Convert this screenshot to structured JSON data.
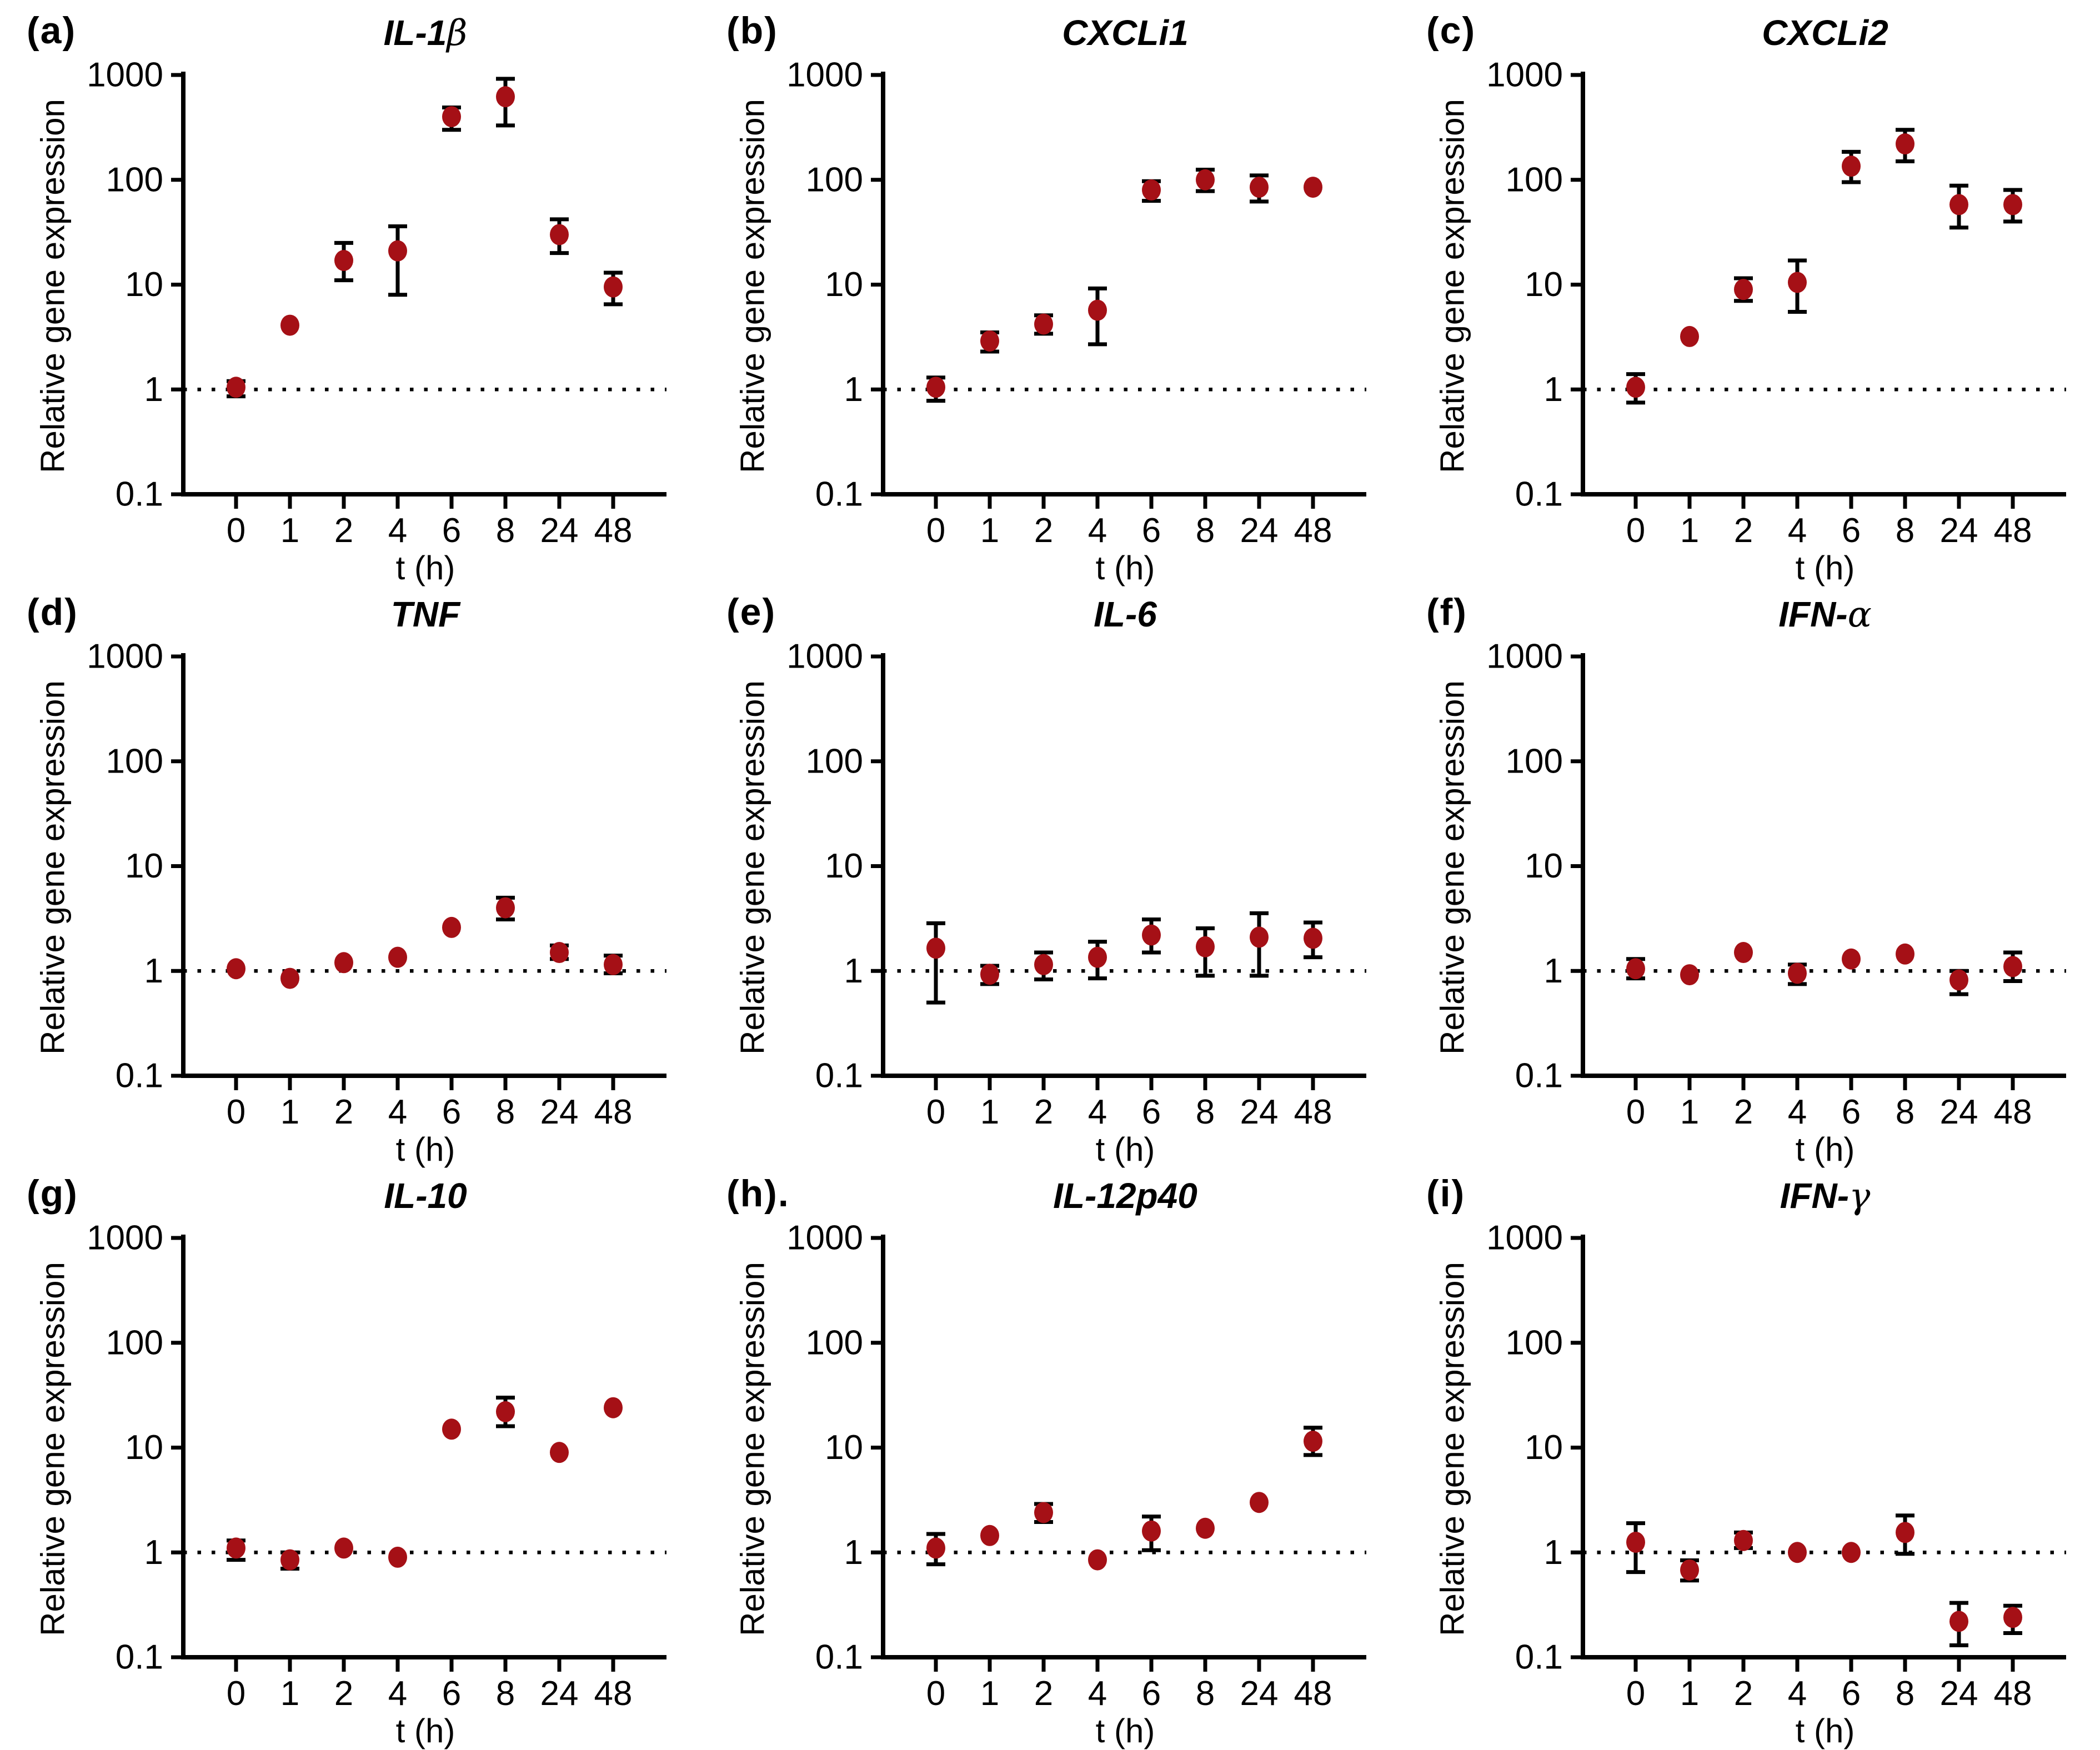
{
  "figure": {
    "ylabel": "Relative gene expression",
    "xlabel": "t (h)",
    "y_ticks": [
      "1000",
      "100",
      "10",
      "1",
      "0.1"
    ],
    "x_categories": [
      "0",
      "1",
      "2",
      "4",
      "6",
      "8",
      "24",
      "48"
    ],
    "marker_color": "#a51016",
    "error_color": "#000000",
    "axis_color": "#000000"
  },
  "chart_data": [
    {
      "type": "scatter",
      "yscale": "log",
      "ylim": [
        0.1,
        1000
      ],
      "baseline": 1,
      "panel_letter": "(a)",
      "title_text": "IL-1",
      "title_greek": "β",
      "categories": [
        "0",
        "1",
        "2",
        "4",
        "6",
        "8",
        "24",
        "48"
      ],
      "y": [
        1.05,
        4.1,
        17,
        21,
        400,
        620,
        30,
        9.5
      ],
      "err_lo": [
        0.86,
        null,
        11,
        8,
        300,
        330,
        20,
        6.5
      ],
      "err_hi": [
        1.2,
        null,
        25,
        36,
        490,
        920,
        42,
        13
      ]
    },
    {
      "type": "scatter",
      "yscale": "log",
      "ylim": [
        0.1,
        1000
      ],
      "baseline": 1,
      "panel_letter": "(b)",
      "title_text": "CXCLi1",
      "title_greek": "",
      "categories": [
        "0",
        "1",
        "2",
        "4",
        "6",
        "8",
        "24",
        "48"
      ],
      "y": [
        1.05,
        2.9,
        4.2,
        5.7,
        80,
        100,
        85,
        85
      ],
      "err_lo": [
        0.78,
        2.3,
        3.4,
        2.7,
        63,
        78,
        62,
        null
      ],
      "err_hi": [
        1.3,
        3.5,
        5.1,
        9.2,
        97,
        125,
        110,
        null
      ]
    },
    {
      "type": "scatter",
      "yscale": "log",
      "ylim": [
        0.1,
        1000
      ],
      "baseline": 1,
      "panel_letter": "(c)",
      "title_text": "CXCLi2",
      "title_greek": "",
      "categories": [
        "0",
        "1",
        "2",
        "4",
        "6",
        "8",
        "24",
        "48"
      ],
      "y": [
        1.05,
        3.2,
        9,
        10.5,
        135,
        220,
        58,
        58
      ],
      "err_lo": [
        0.75,
        null,
        7,
        5.5,
        95,
        150,
        35,
        40
      ],
      "err_hi": [
        1.4,
        null,
        11.5,
        17,
        185,
        300,
        88,
        80
      ]
    },
    {
      "type": "scatter",
      "yscale": "log",
      "ylim": [
        0.1,
        1000
      ],
      "baseline": 1,
      "panel_letter": "(d)",
      "title_text": "TNF",
      "title_greek": "",
      "categories": [
        "0",
        "1",
        "2",
        "4",
        "6",
        "8",
        "24",
        "48"
      ],
      "y": [
        1.05,
        0.85,
        1.2,
        1.35,
        2.6,
        4.0,
        1.5,
        1.15
      ],
      "err_lo": [
        null,
        null,
        null,
        null,
        null,
        3.1,
        1.3,
        0.95
      ],
      "err_hi": [
        null,
        null,
        null,
        null,
        null,
        5.0,
        1.75,
        1.4
      ]
    },
    {
      "type": "scatter",
      "yscale": "log",
      "ylim": [
        0.1,
        1000
      ],
      "baseline": 1,
      "panel_letter": "(e)",
      "title_text": "IL-6",
      "title_greek": "",
      "categories": [
        "0",
        "1",
        "2",
        "4",
        "6",
        "8",
        "24",
        "48"
      ],
      "y": [
        1.65,
        0.93,
        1.15,
        1.35,
        2.2,
        1.7,
        2.1,
        2.05
      ],
      "err_lo": [
        0.5,
        0.75,
        0.83,
        0.85,
        1.5,
        0.9,
        0.9,
        1.35
      ],
      "err_hi": [
        2.85,
        1.12,
        1.5,
        1.9,
        3.1,
        2.55,
        3.55,
        2.9
      ]
    },
    {
      "type": "scatter",
      "yscale": "log",
      "ylim": [
        0.1,
        1000
      ],
      "baseline": 1,
      "panel_letter": "(f)",
      "title_text": "IFN-",
      "title_greek": "α",
      "categories": [
        "0",
        "1",
        "2",
        "4",
        "6",
        "8",
        "24",
        "48"
      ],
      "y": [
        1.05,
        0.92,
        1.5,
        0.95,
        1.3,
        1.45,
        0.82,
        1.1
      ],
      "err_lo": [
        0.85,
        null,
        null,
        0.75,
        null,
        null,
        0.6,
        0.8
      ],
      "err_hi": [
        1.3,
        null,
        null,
        1.15,
        null,
        null,
        1.0,
        1.5
      ]
    },
    {
      "type": "scatter",
      "yscale": "log",
      "ylim": [
        0.1,
        1000
      ],
      "baseline": 1,
      "panel_letter": "(g)",
      "title_text": "IL-10",
      "title_greek": "",
      "categories": [
        "0",
        "1",
        "2",
        "4",
        "6",
        "8",
        "24",
        "48"
      ],
      "y": [
        1.1,
        0.85,
        1.1,
        0.9,
        15,
        22,
        9,
        24
      ],
      "err_lo": [
        0.85,
        0.7,
        null,
        null,
        null,
        16,
        null,
        null
      ],
      "err_hi": [
        1.3,
        1.0,
        null,
        null,
        null,
        30,
        null,
        null
      ]
    },
    {
      "type": "scatter",
      "yscale": "log",
      "ylim": [
        0.1,
        1000
      ],
      "baseline": 1,
      "panel_letter": "(h).",
      "title_text": "IL-12p40",
      "title_greek": "",
      "categories": [
        "0",
        "1",
        "2",
        "4",
        "6",
        "8",
        "24",
        "48"
      ],
      "y": [
        1.1,
        1.45,
        2.4,
        0.85,
        1.6,
        1.7,
        3.0,
        11.5
      ],
      "err_lo": [
        0.77,
        null,
        1.95,
        null,
        1.05,
        null,
        null,
        8.5
      ],
      "err_hi": [
        1.5,
        null,
        2.9,
        null,
        2.2,
        null,
        null,
        15.5
      ]
    },
    {
      "type": "scatter",
      "yscale": "log",
      "ylim": [
        0.1,
        1000
      ],
      "baseline": 1,
      "panel_letter": "(i)",
      "title_text": "IFN-",
      "title_greek": "γ",
      "categories": [
        "0",
        "1",
        "2",
        "4",
        "6",
        "8",
        "24",
        "48"
      ],
      "y": [
        1.25,
        0.68,
        1.3,
        1.0,
        1.0,
        1.55,
        0.22,
        0.24
      ],
      "err_lo": [
        0.65,
        0.54,
        1.1,
        null,
        null,
        0.97,
        0.13,
        0.17
      ],
      "err_hi": [
        1.9,
        0.84,
        1.55,
        null,
        null,
        2.25,
        0.33,
        0.31
      ]
    }
  ]
}
